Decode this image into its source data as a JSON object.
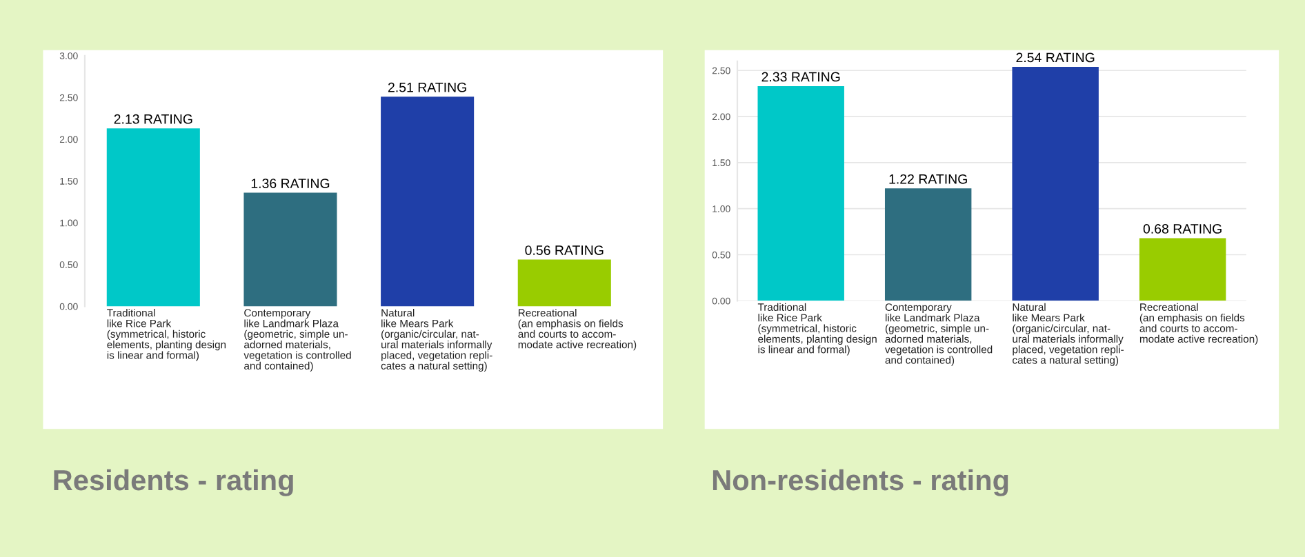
{
  "chart_data": [
    {
      "type": "bar",
      "title": "Residents - rating",
      "categories": [
        "Traditional\nlike Rice Park\n(symmetrical, historic\nelements, planting design\nis linear and formal)",
        "Contemporary\nlike Landmark Plaza\n(geometric, simple un-\nadorned materials,\nvegetation is controlled\nand contained)",
        "Natural\nlike Mears Park\n(organic/circular, nat-\nural materials informally\nplaced, vegetation repli-\ncates a natural setting)",
        "Recreational\n(an emphasis on fields\nand courts to accom-\nmodate active recreation)"
      ],
      "values": [
        2.13,
        1.36,
        2.51,
        0.56
      ],
      "colors": [
        "#00c8c8",
        "#2e6e80",
        "#1f3fa8",
        "#99cc00"
      ],
      "value_labels": [
        "2.13 RATING",
        "1.36 RATING",
        "2.51 RATING",
        "0.56 RATING"
      ],
      "ylim": [
        0,
        3
      ],
      "yticks": [
        {
          "value": 0,
          "label": "0.00"
        },
        {
          "value": 0.5,
          "label": "0.50"
        },
        {
          "value": 1,
          "label": "1.00"
        },
        {
          "value": 1.5,
          "label": "1.50"
        },
        {
          "value": 2,
          "label": "2.00"
        },
        {
          "value": 2.5,
          "label": "2.50"
        },
        {
          "value": 3,
          "label": "3.00"
        }
      ],
      "grid": false
    },
    {
      "type": "bar",
      "title": "Non-residents - rating",
      "categories": [
        "Traditional\nlike Rice Park\n(symmetrical, historic\nelements, planting design\nis linear and formal)",
        "Contemporary\nlike Landmark Plaza\n(geometric, simple un-\nadorned materials,\nvegetation is controlled\nand contained)",
        "Natural\nlike Mears Park\n(organic/circular, nat-\nural materials informally\nplaced, vegetation repli-\ncates a natural setting)",
        "Recreational\n(an emphasis on fields\nand courts to accom-\nmodate active recreation)"
      ],
      "values": [
        2.33,
        1.22,
        2.54,
        0.68
      ],
      "colors": [
        "#00c8c8",
        "#2e6e80",
        "#1f3fa8",
        "#99cc00"
      ],
      "value_labels": [
        "2.33 RATING",
        "1.22 RATING",
        "2.54 RATING",
        "0.68 RATING"
      ],
      "ylim": [
        0,
        2.6
      ],
      "yticks": [
        {
          "value": 0,
          "label": "0.00"
        },
        {
          "value": 0.5,
          "label": "0.50"
        },
        {
          "value": 1,
          "label": "1.00"
        },
        {
          "value": 1.5,
          "label": "1.50"
        },
        {
          "value": 2,
          "label": "2.00"
        },
        {
          "value": 2.5,
          "label": "2.50"
        }
      ],
      "grid": "y"
    }
  ]
}
